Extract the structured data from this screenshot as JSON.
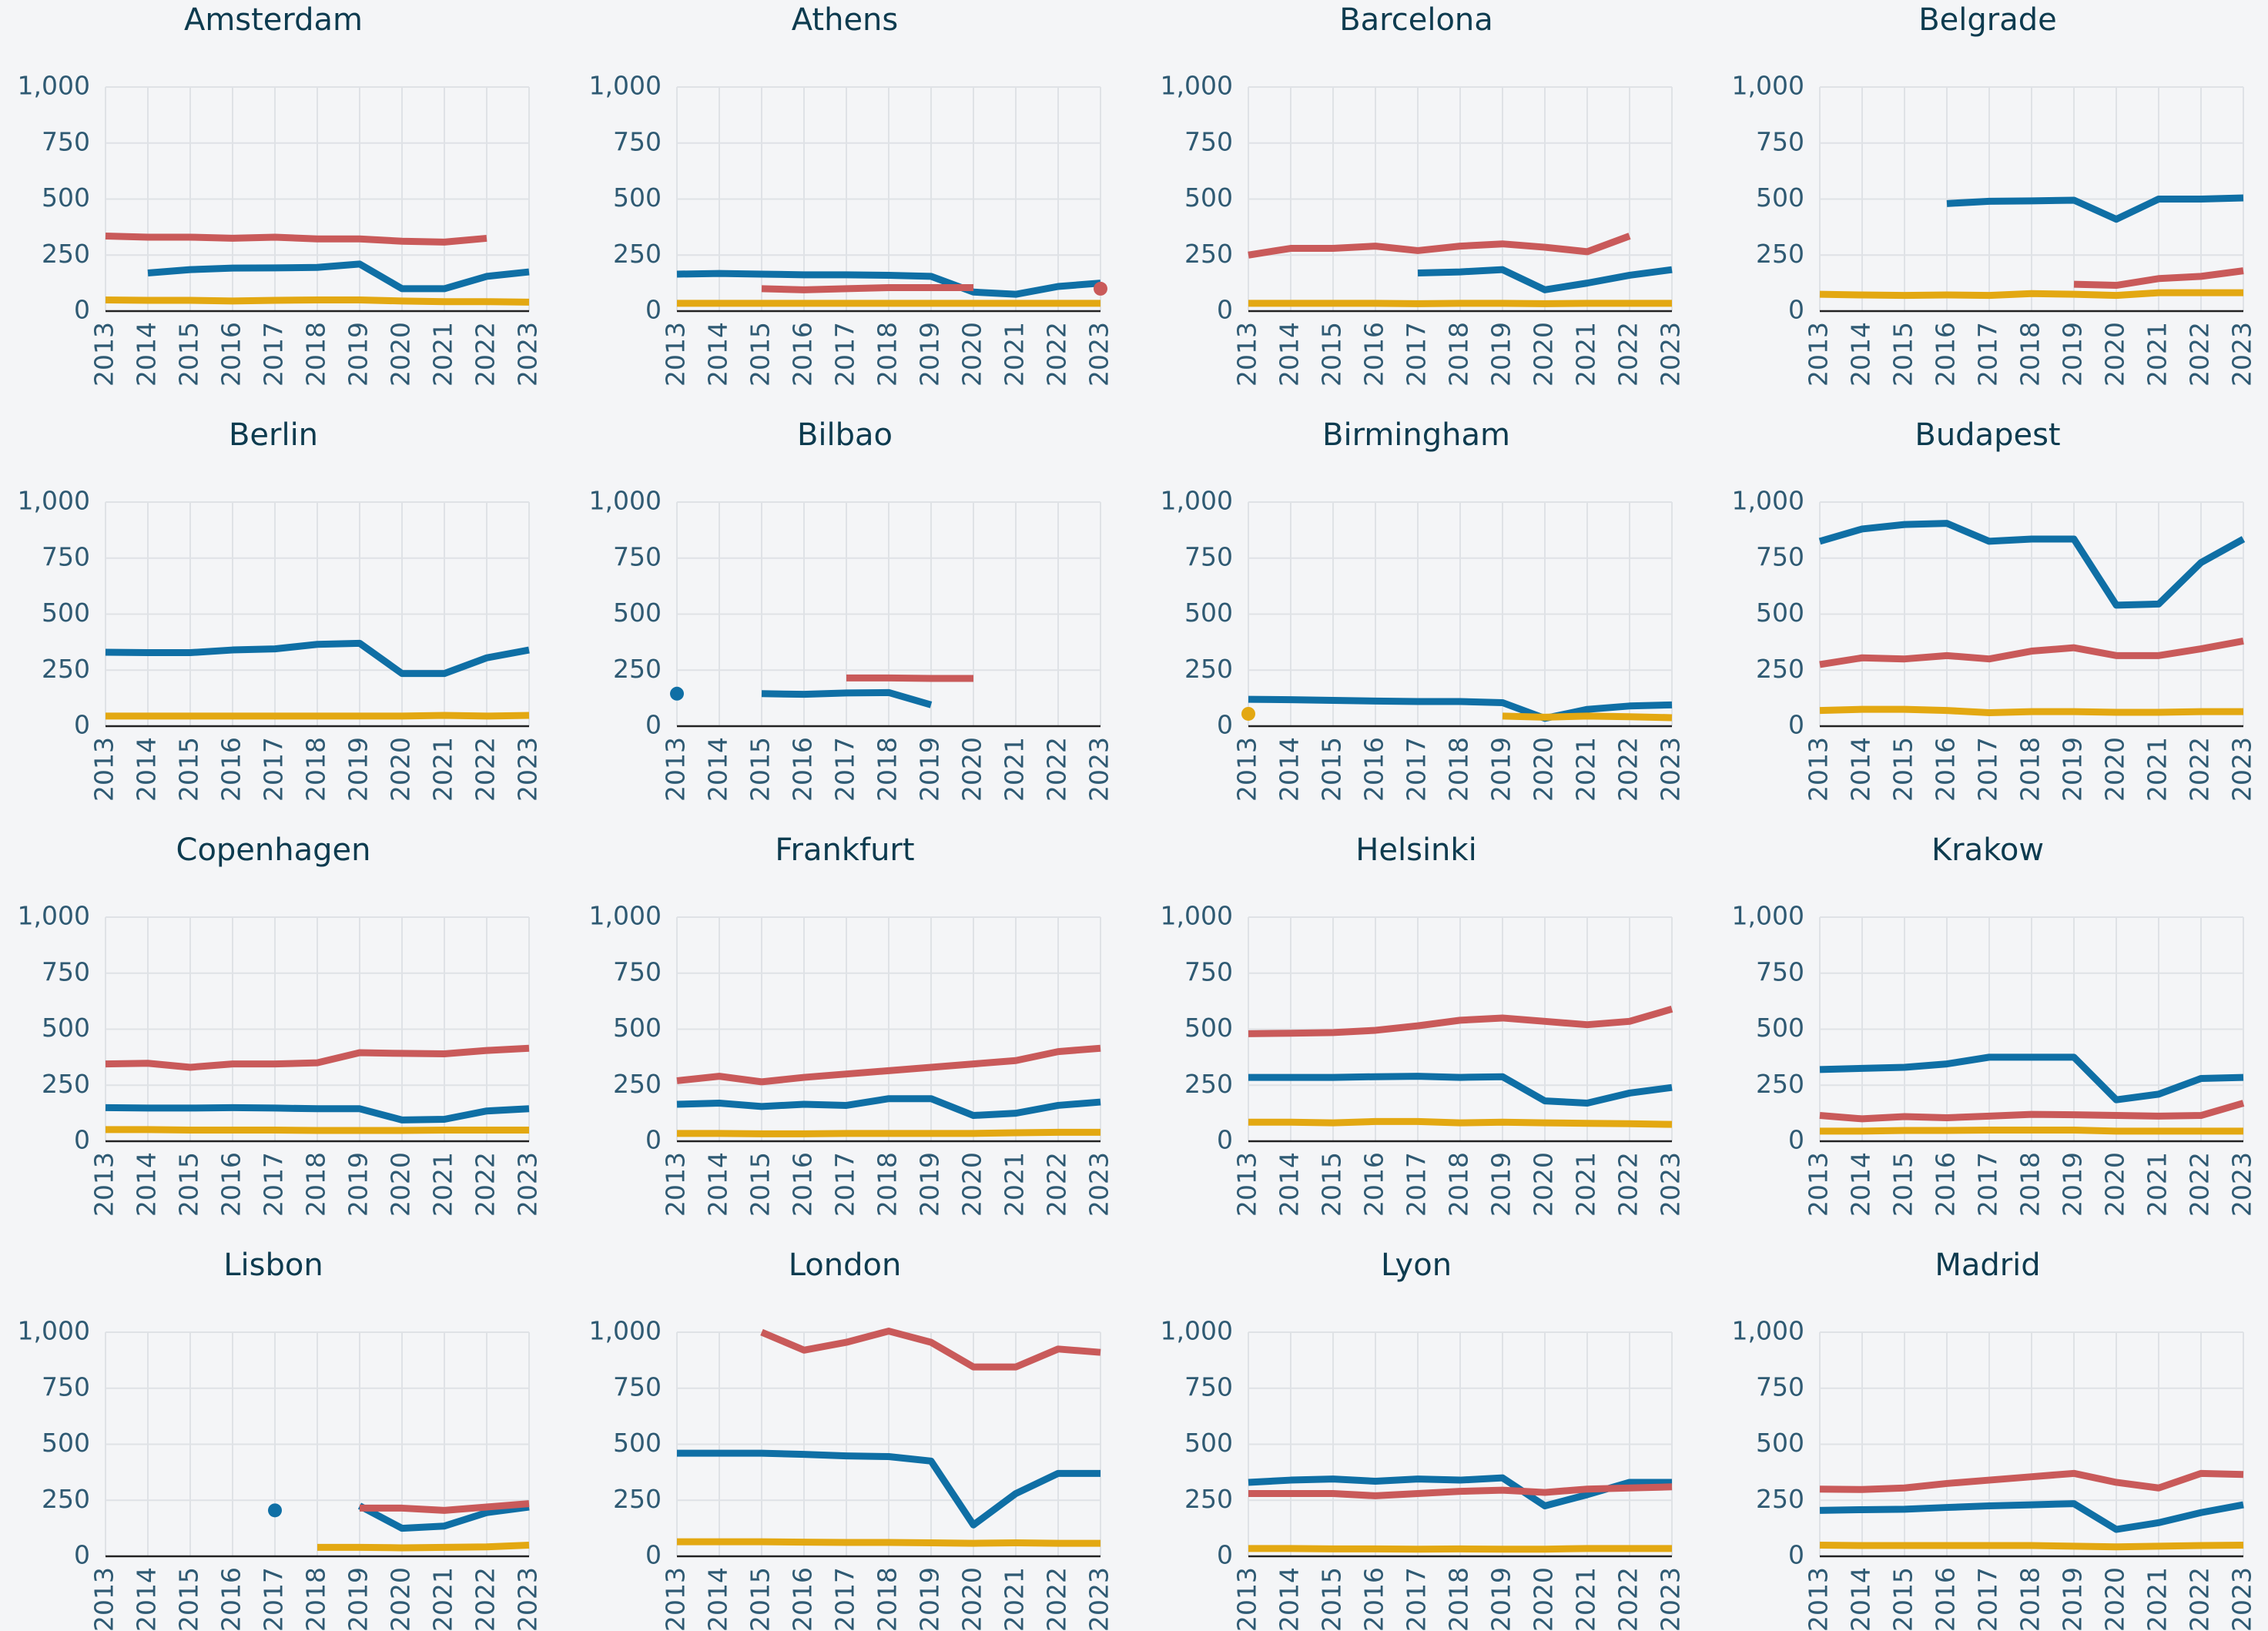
{
  "chart_data": [
    {
      "type": "line",
      "title": "Amsterdam",
      "x": [
        2013,
        2014,
        2015,
        2016,
        2017,
        2018,
        2019,
        2020,
        2021,
        2022,
        2023
      ],
      "ylim": [
        0,
        1000
      ],
      "yticks": [
        0,
        250,
        500,
        750,
        {
          "value": 1000,
          "label": "1,000"
        }
      ],
      "grid": true,
      "series": [
        {
          "color": "#0f6fa5",
          "values": [
            null,
            170,
            185,
            192,
            193,
            195,
            210,
            100,
            100,
            155,
            175
          ]
        },
        {
          "color": "#c95a5a",
          "values": [
            335,
            330,
            330,
            325,
            330,
            322,
            322,
            312,
            308,
            325,
            null
          ]
        },
        {
          "color": "#e3a812",
          "values": [
            50,
            48,
            48,
            45,
            48,
            50,
            50,
            45,
            42,
            42,
            40
          ]
        }
      ]
    },
    {
      "type": "line",
      "title": "Athens",
      "x": [
        2013,
        2014,
        2015,
        2016,
        2017,
        2018,
        2019,
        2020,
        2021,
        2022,
        2023
      ],
      "ylim": [
        0,
        1000
      ],
      "yticks": [
        0,
        250,
        500,
        750,
        {
          "value": 1000,
          "label": "1,000"
        }
      ],
      "grid": true,
      "series": [
        {
          "color": "#0f6fa5",
          "values": [
            165,
            168,
            165,
            162,
            162,
            160,
            155,
            85,
            75,
            110,
            125
          ]
        },
        {
          "color": "#c95a5a",
          "values": [
            null,
            null,
            100,
            95,
            100,
            105,
            105,
            105,
            null,
            null,
            100
          ]
        },
        {
          "color": "#e3a812",
          "values": [
            35,
            35,
            35,
            35,
            35,
            35,
            35,
            35,
            35,
            35,
            35
          ]
        }
      ]
    },
    {
      "type": "line",
      "title": "Barcelona",
      "x": [
        2013,
        2014,
        2015,
        2016,
        2017,
        2018,
        2019,
        2020,
        2021,
        2022,
        2023
      ],
      "ylim": [
        0,
        1000
      ],
      "yticks": [
        0,
        250,
        500,
        750,
        {
          "value": 1000,
          "label": "1,000"
        }
      ],
      "grid": true,
      "series": [
        {
          "color": "#0f6fa5",
          "values": [
            null,
            null,
            null,
            null,
            170,
            175,
            185,
            95,
            125,
            160,
            185
          ]
        },
        {
          "color": "#c95a5a",
          "values": [
            250,
            280,
            280,
            290,
            270,
            290,
            300,
            285,
            265,
            335,
            null
          ]
        },
        {
          "color": "#e3a812",
          "values": [
            35,
            35,
            35,
            35,
            33,
            35,
            35,
            33,
            35,
            35,
            35
          ]
        }
      ]
    },
    {
      "type": "line",
      "title": "Belgrade",
      "x": [
        2013,
        2014,
        2015,
        2016,
        2017,
        2018,
        2019,
        2020,
        2021,
        2022,
        2023
      ],
      "ylim": [
        0,
        1000
      ],
      "yticks": [
        0,
        250,
        500,
        750,
        {
          "value": 1000,
          "label": "1,000"
        }
      ],
      "grid": true,
      "series": [
        {
          "color": "#0f6fa5",
          "values": [
            null,
            null,
            null,
            480,
            490,
            492,
            495,
            410,
            500,
            500,
            505
          ]
        },
        {
          "color": "#c95a5a",
          "values": [
            null,
            null,
            null,
            null,
            null,
            null,
            120,
            115,
            145,
            155,
            180
          ]
        },
        {
          "color": "#e3a812",
          "values": [
            75,
            72,
            70,
            72,
            70,
            78,
            75,
            70,
            82,
            82,
            82
          ]
        }
      ]
    },
    {
      "type": "line",
      "title": "Berlin",
      "x": [
        2013,
        2014,
        2015,
        2016,
        2017,
        2018,
        2019,
        2020,
        2021,
        2022,
        2023
      ],
      "ylim": [
        0,
        1000
      ],
      "yticks": [
        0,
        250,
        500,
        750,
        {
          "value": 1000,
          "label": "1,000"
        }
      ],
      "grid": true,
      "series": [
        {
          "color": "#0f6fa5",
          "values": [
            330,
            328,
            328,
            340,
            345,
            365,
            370,
            235,
            235,
            305,
            340
          ]
        },
        {
          "color": "#e3a812",
          "values": [
            45,
            45,
            45,
            45,
            45,
            45,
            45,
            45,
            48,
            45,
            48
          ]
        }
      ]
    },
    {
      "type": "line",
      "title": "Bilbao",
      "x": [
        2013,
        2014,
        2015,
        2016,
        2017,
        2018,
        2019,
        2020,
        2021,
        2022,
        2023
      ],
      "ylim": [
        0,
        1000
      ],
      "yticks": [
        0,
        250,
        500,
        750,
        {
          "value": 1000,
          "label": "1,000"
        }
      ],
      "grid": true,
      "series": [
        {
          "color": "#0f6fa5",
          "values": [
            145,
            null,
            145,
            142,
            148,
            150,
            95,
            null,
            null,
            null,
            null
          ]
        },
        {
          "color": "#c95a5a",
          "values": [
            null,
            null,
            null,
            null,
            215,
            215,
            213,
            213,
            null,
            null,
            null
          ]
        }
      ]
    },
    {
      "type": "line",
      "title": "Birmingham",
      "x": [
        2013,
        2014,
        2015,
        2016,
        2017,
        2018,
        2019,
        2020,
        2021,
        2022,
        2023
      ],
      "ylim": [
        0,
        1000
      ],
      "yticks": [
        0,
        250,
        500,
        750,
        {
          "value": 1000,
          "label": "1,000"
        }
      ],
      "grid": true,
      "series": [
        {
          "color": "#0f6fa5",
          "values": [
            120,
            118,
            115,
            112,
            110,
            110,
            105,
            35,
            75,
            90,
            95
          ]
        },
        {
          "color": "#e3a812",
          "values": [
            55,
            null,
            null,
            null,
            null,
            null,
            45,
            40,
            45,
            42,
            38
          ]
        }
      ]
    },
    {
      "type": "line",
      "title": "Budapest",
      "x": [
        2013,
        2014,
        2015,
        2016,
        2017,
        2018,
        2019,
        2020,
        2021,
        2022,
        2023
      ],
      "ylim": [
        0,
        1000
      ],
      "yticks": [
        0,
        250,
        500,
        750,
        {
          "value": 1000,
          "label": "1,000"
        }
      ],
      "grid": true,
      "series": [
        {
          "color": "#0f6fa5",
          "values": [
            825,
            880,
            900,
            905,
            825,
            835,
            835,
            540,
            545,
            730,
            835
          ]
        },
        {
          "color": "#c95a5a",
          "values": [
            275,
            305,
            300,
            315,
            300,
            335,
            350,
            315,
            315,
            345,
            380
          ]
        },
        {
          "color": "#e3a812",
          "values": [
            70,
            75,
            75,
            70,
            60,
            65,
            65,
            62,
            62,
            65,
            65
          ]
        }
      ]
    },
    {
      "type": "line",
      "title": "Copenhagen",
      "x": [
        2013,
        2014,
        2015,
        2016,
        2017,
        2018,
        2019,
        2020,
        2021,
        2022,
        2023
      ],
      "ylim": [
        0,
        1000
      ],
      "yticks": [
        0,
        250,
        500,
        750,
        {
          "value": 1000,
          "label": "1,000"
        }
      ],
      "grid": true,
      "series": [
        {
          "color": "#0f6fa5",
          "values": [
            150,
            148,
            148,
            150,
            148,
            145,
            145,
            95,
            98,
            135,
            145
          ]
        },
        {
          "color": "#c95a5a",
          "values": [
            345,
            348,
            330,
            345,
            345,
            350,
            395,
            392,
            390,
            405,
            415
          ]
        },
        {
          "color": "#e3a812",
          "values": [
            52,
            52,
            50,
            50,
            50,
            48,
            48,
            48,
            50,
            50,
            50
          ]
        }
      ]
    },
    {
      "type": "line",
      "title": "Frankfurt",
      "x": [
        2013,
        2014,
        2015,
        2016,
        2017,
        2018,
        2019,
        2020,
        2021,
        2022,
        2023
      ],
      "ylim": [
        0,
        1000
      ],
      "yticks": [
        0,
        250,
        500,
        750,
        {
          "value": 1000,
          "label": "1,000"
        }
      ],
      "grid": true,
      "series": [
        {
          "color": "#0f6fa5",
          "values": [
            165,
            170,
            155,
            165,
            160,
            190,
            190,
            115,
            125,
            160,
            175
          ]
        },
        {
          "color": "#c95a5a",
          "values": [
            270,
            290,
            265,
            285,
            300,
            315,
            330,
            345,
            360,
            400,
            415
          ]
        },
        {
          "color": "#e3a812",
          "values": [
            35,
            35,
            33,
            33,
            35,
            35,
            35,
            35,
            38,
            40,
            40
          ]
        }
      ]
    },
    {
      "type": "line",
      "title": "Helsinki",
      "x": [
        2013,
        2014,
        2015,
        2016,
        2017,
        2018,
        2019,
        2020,
        2021,
        2022,
        2023
      ],
      "ylim": [
        0,
        1000
      ],
      "yticks": [
        0,
        250,
        500,
        750,
        {
          "value": 1000,
          "label": "1,000"
        }
      ],
      "grid": true,
      "series": [
        {
          "color": "#0f6fa5",
          "values": [
            285,
            285,
            285,
            288,
            290,
            285,
            288,
            180,
            170,
            215,
            240
          ]
        },
        {
          "color": "#c95a5a",
          "values": [
            480,
            482,
            485,
            495,
            515,
            540,
            550,
            535,
            520,
            535,
            590
          ]
        },
        {
          "color": "#e3a812",
          "values": [
            85,
            85,
            82,
            88,
            88,
            82,
            85,
            82,
            80,
            78,
            75
          ]
        }
      ]
    },
    {
      "type": "line",
      "title": "Krakow",
      "x": [
        2013,
        2014,
        2015,
        2016,
        2017,
        2018,
        2019,
        2020,
        2021,
        2022,
        2023
      ],
      "ylim": [
        0,
        1000
      ],
      "yticks": [
        0,
        250,
        500,
        750,
        {
          "value": 1000,
          "label": "1,000"
        }
      ],
      "grid": true,
      "series": [
        {
          "color": "#0f6fa5",
          "values": [
            320,
            325,
            330,
            345,
            375,
            375,
            375,
            185,
            210,
            280,
            285
          ]
        },
        {
          "color": "#c95a5a",
          "values": [
            115,
            100,
            110,
            105,
            112,
            120,
            118,
            115,
            112,
            115,
            170
          ]
        },
        {
          "color": "#e3a812",
          "values": [
            45,
            45,
            48,
            48,
            50,
            50,
            50,
            45,
            45,
            45,
            45
          ]
        }
      ]
    },
    {
      "type": "line",
      "title": "Lisbon",
      "x": [
        2013,
        2014,
        2015,
        2016,
        2017,
        2018,
        2019,
        2020,
        2021,
        2022,
        2023
      ],
      "ylim": [
        0,
        1000
      ],
      "yticks": [
        0,
        250,
        500,
        750,
        {
          "value": 1000,
          "label": "1,000"
        }
      ],
      "grid": true,
      "series": [
        {
          "color": "#0f6fa5",
          "values": [
            null,
            null,
            null,
            null,
            205,
            null,
            225,
            125,
            135,
            195,
            220
          ]
        },
        {
          "color": "#c95a5a",
          "values": [
            null,
            null,
            null,
            null,
            null,
            null,
            215,
            215,
            205,
            220,
            235
          ]
        },
        {
          "color": "#e3a812",
          "values": [
            null,
            null,
            null,
            null,
            null,
            40,
            40,
            38,
            40,
            42,
            50
          ]
        }
      ]
    },
    {
      "type": "line",
      "title": "London",
      "x": [
        2013,
        2014,
        2015,
        2016,
        2017,
        2018,
        2019,
        2020,
        2021,
        2022,
        2023
      ],
      "ylim": [
        0,
        1000
      ],
      "yticks": [
        0,
        250,
        500,
        750,
        {
          "value": 1000,
          "label": "1,000"
        }
      ],
      "grid": true,
      "series": [
        {
          "color": "#0f6fa5",
          "values": [
            460,
            460,
            460,
            455,
            448,
            445,
            425,
            140,
            280,
            370,
            370
          ]
        },
        {
          "color": "#c95a5a",
          "values": [
            null,
            null,
            1000,
            920,
            955,
            1005,
            955,
            845,
            845,
            925,
            910
          ]
        },
        {
          "color": "#e3a812",
          "values": [
            65,
            65,
            65,
            63,
            62,
            62,
            60,
            58,
            60,
            58,
            58
          ]
        }
      ]
    },
    {
      "type": "line",
      "title": "Lyon",
      "x": [
        2013,
        2014,
        2015,
        2016,
        2017,
        2018,
        2019,
        2020,
        2021,
        2022,
        2023
      ],
      "ylim": [
        0,
        1000
      ],
      "yticks": [
        0,
        250,
        500,
        750,
        {
          "value": 1000,
          "label": "1,000"
        }
      ],
      "grid": true,
      "series": [
        {
          "color": "#0f6fa5",
          "values": [
            330,
            340,
            345,
            335,
            345,
            340,
            350,
            225,
            275,
            330,
            330
          ]
        },
        {
          "color": "#c95a5a",
          "values": [
            280,
            280,
            280,
            270,
            280,
            290,
            295,
            285,
            300,
            305,
            310
          ]
        },
        {
          "color": "#e3a812",
          "values": [
            35,
            35,
            33,
            33,
            32,
            33,
            32,
            32,
            35,
            35,
            35
          ]
        }
      ]
    },
    {
      "type": "line",
      "title": "Madrid",
      "x": [
        2013,
        2014,
        2015,
        2016,
        2017,
        2018,
        2019,
        2020,
        2021,
        2022,
        2023
      ],
      "ylim": [
        0,
        1000
      ],
      "yticks": [
        0,
        250,
        500,
        750,
        {
          "value": 1000,
          "label": "1,000"
        }
      ],
      "grid": true,
      "series": [
        {
          "color": "#0f6fa5",
          "values": [
            205,
            208,
            210,
            218,
            225,
            230,
            235,
            120,
            150,
            195,
            230
          ]
        },
        {
          "color": "#c95a5a",
          "values": [
            300,
            298,
            305,
            325,
            340,
            355,
            370,
            330,
            305,
            370,
            365
          ]
        },
        {
          "color": "#e3a812",
          "values": [
            50,
            48,
            48,
            48,
            48,
            48,
            45,
            42,
            45,
            48,
            50
          ]
        }
      ]
    }
  ]
}
